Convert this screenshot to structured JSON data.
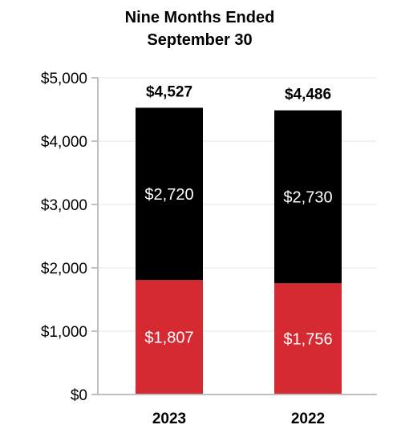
{
  "chart_data": {
    "type": "bar",
    "stacked": true,
    "title": [
      "Nine Months Ended",
      "September 30"
    ],
    "categories": [
      "2023",
      "2022"
    ],
    "series": [
      {
        "values": [
          1807,
          1756
        ],
        "labels": [
          "$1,807",
          "$1,756"
        ],
        "color": "#d62a33"
      },
      {
        "values": [
          2720,
          2730
        ],
        "labels": [
          "$2,720",
          "$2,730"
        ],
        "color": "#000000"
      }
    ],
    "totals": [
      4527,
      4486
    ],
    "total_labels": [
      "$4,527",
      "$4,486"
    ],
    "ylim": [
      0,
      5000
    ],
    "yticks": [
      0,
      1000,
      2000,
      3000,
      4000,
      5000
    ],
    "ytick_labels": [
      "$0",
      "$1,000",
      "$2,000",
      "$3,000",
      "$4,000",
      "$5,000"
    ],
    "grid": true,
    "legend": "none"
  }
}
